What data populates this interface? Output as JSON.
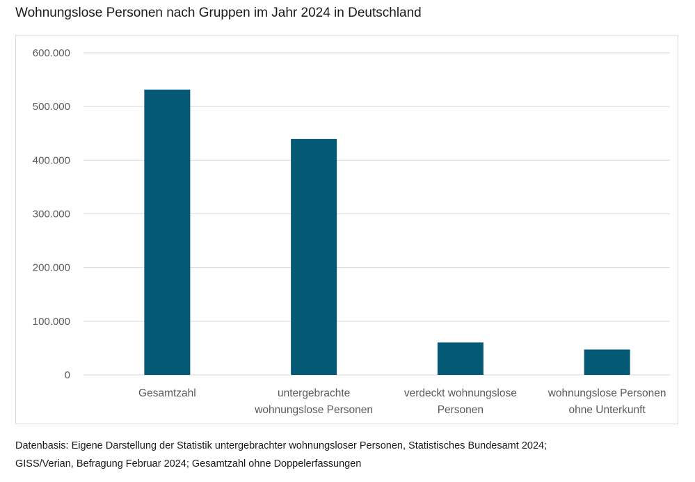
{
  "title": "Wohnungslose Personen nach Gruppen im Jahr 2024 in Deutschland",
  "source": {
    "line1": "Datenbasis: Eigene Darstellung der Statistik untergebrachter wohnungsloser Personen, Statistisches Bundesamt 2024;",
    "line2": "GISS/Verian, Befragung Februar 2024; Gesamtzahl ohne Doppelerfassungen"
  },
  "colors": {
    "bar": "#045a74",
    "grid": "#d9d9d9",
    "text": "#595959"
  },
  "chart_data": {
    "type": "bar",
    "title": "Wohnungslose Personen nach Gruppen im Jahr 2024 in Deutschland",
    "categories": [
      [
        "Gesamtzahl"
      ],
      [
        "untergebrachte",
        "wohnungslose Personen"
      ],
      [
        "verdeckt wohnungslose",
        "Personen"
      ],
      [
        "wohnungslose Personen",
        "ohne Unterkunft"
      ]
    ],
    "values": [
      531600,
      439500,
      60400,
      47300
    ],
    "ylim": [
      0,
      600000
    ],
    "yticks": [
      "0",
      "100.000",
      "200.000",
      "300.000",
      "400.000",
      "500.000",
      "600.000"
    ],
    "ytick_values": [
      0,
      100000,
      200000,
      300000,
      400000,
      500000,
      600000
    ],
    "grid": true,
    "legend": "none",
    "xlabel": "",
    "ylabel": ""
  }
}
